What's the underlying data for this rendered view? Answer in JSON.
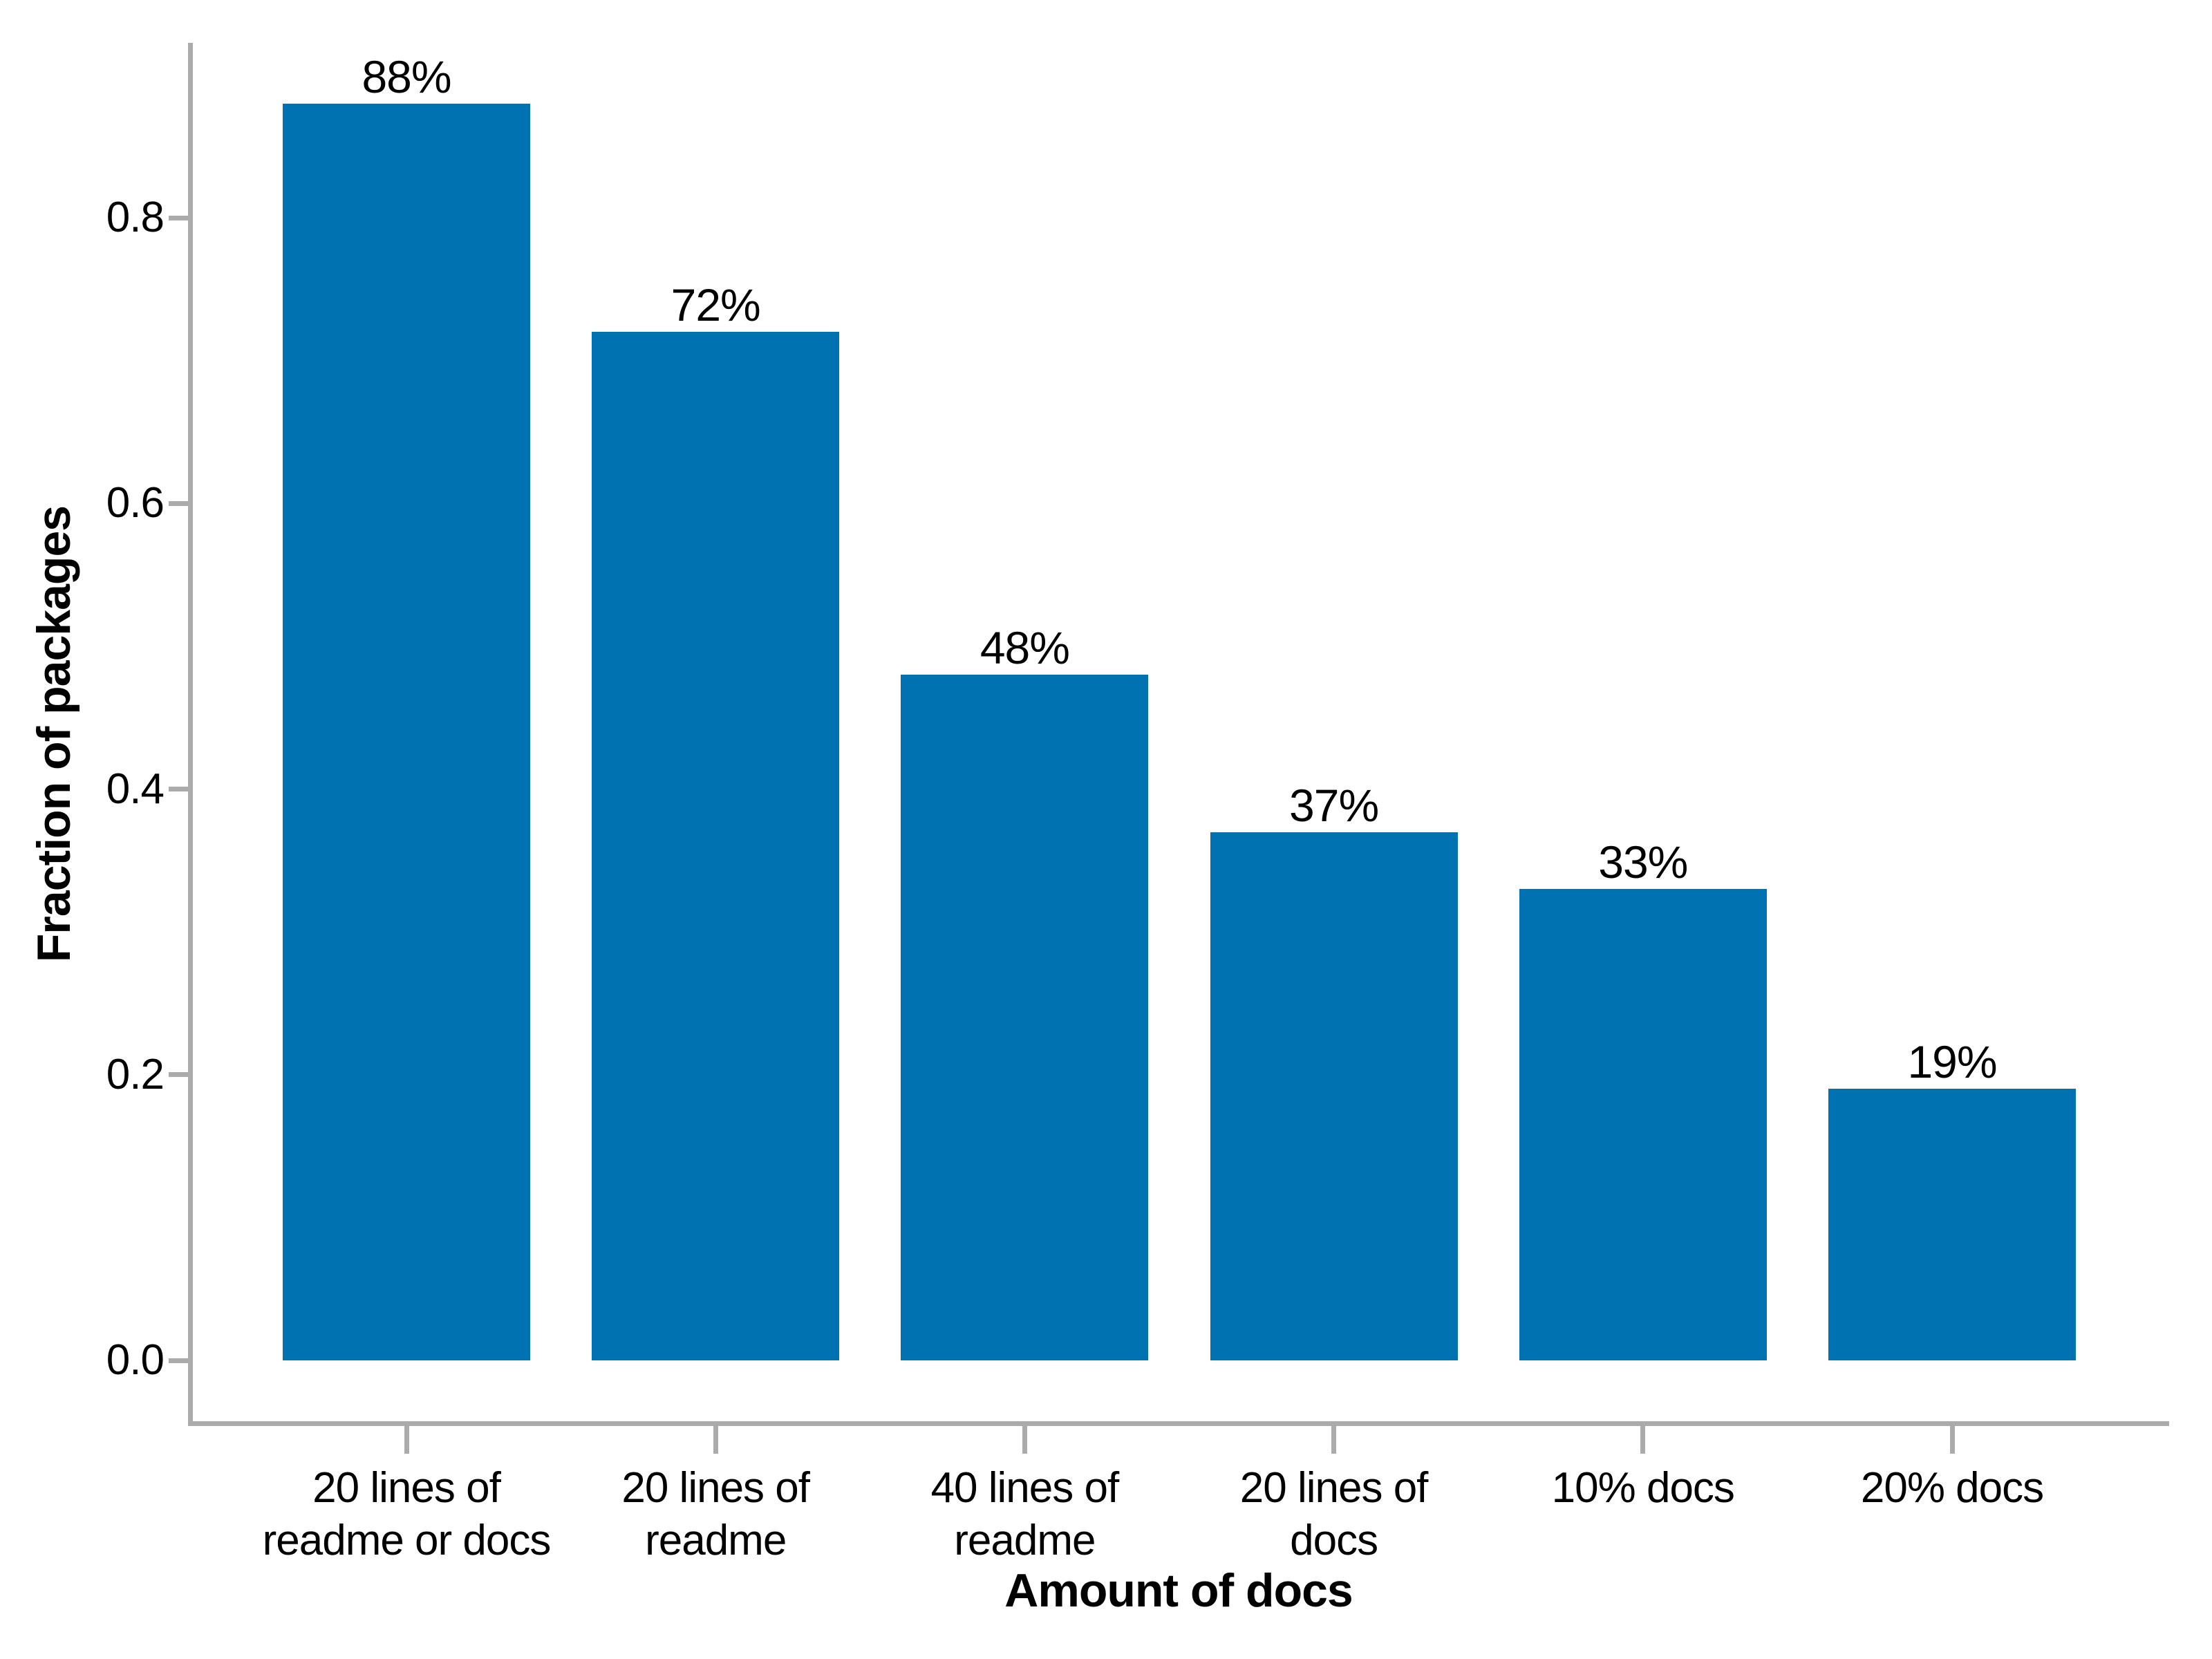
{
  "chart_data": {
    "type": "bar",
    "title": "",
    "xlabel": "Amount of docs",
    "ylabel": "Fraction of packages",
    "categories": [
      "20 lines of\nreadme or docs",
      "20 lines of\nreadme",
      "40 lines of\nreadme",
      "20 lines of\ndocs",
      "10% docs",
      "20% docs"
    ],
    "values": [
      0.88,
      0.72,
      0.48,
      0.37,
      0.33,
      0.19
    ],
    "bar_labels": [
      "88%",
      "72%",
      "48%",
      "37%",
      "33%",
      "19%"
    ],
    "y_ticks": [
      0.0,
      0.2,
      0.4,
      0.6,
      0.8
    ],
    "y_tick_labels": [
      "0.0",
      "0.2",
      "0.4",
      "0.6",
      "0.8"
    ],
    "ylim": [
      0.0,
      0.92
    ],
    "grid": false,
    "legend": null,
    "bar_color": "#0072B2",
    "axis_color": "#ABABAB",
    "text_color": "#000000"
  }
}
